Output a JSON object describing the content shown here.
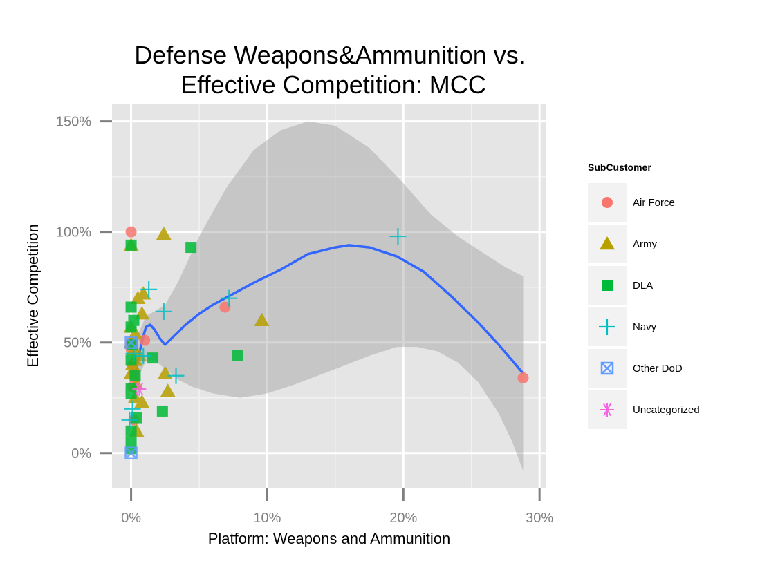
{
  "chart_data": {
    "type": "scatter",
    "title": [
      "Defense Weapons&Ammunition vs.",
      "Effective Competition: MCC"
    ],
    "xlabel": "Platform: Weapons and Ammunition",
    "ylabel": "Effective Competition",
    "xlim": [
      -0.014,
      0.305
    ],
    "ylim": [
      -0.16,
      1.58
    ],
    "x_ticks": [
      0,
      0.1,
      0.2,
      0.3
    ],
    "x_tick_labels": [
      "0%",
      "10%",
      "20%",
      "30%"
    ],
    "y_ticks": [
      0,
      0.5,
      1.0,
      1.5
    ],
    "y_tick_labels": [
      "0%",
      "50%",
      "100%",
      "150%"
    ],
    "grid": true,
    "legend": {
      "title": "SubCustomer",
      "position": "right"
    },
    "series": [
      {
        "name": "Air Force",
        "color": "#F8766D",
        "shape": "circle",
        "points": [
          [
            0.0,
            1.0
          ],
          [
            0.0,
            0.5
          ],
          [
            0.0,
            0.47
          ],
          [
            0.001,
            0.4
          ],
          [
            0.002,
            0.36
          ],
          [
            0.003,
            0.33
          ],
          [
            0.002,
            0.15
          ],
          [
            0.01,
            0.51
          ],
          [
            0.069,
            0.66
          ],
          [
            0.288,
            0.34
          ],
          [
            0.001,
            0.3
          ]
        ]
      },
      {
        "name": "Army",
        "color": "#B79F00",
        "shape": "triangle",
        "points": [
          [
            0.0,
            0.94
          ],
          [
            0.024,
            0.99
          ],
          [
            0.0,
            0.57
          ],
          [
            0.0,
            0.5
          ],
          [
            0.001,
            0.4
          ],
          [
            0.0,
            0.36
          ],
          [
            0.005,
            0.7
          ],
          [
            0.009,
            0.72
          ],
          [
            0.008,
            0.63
          ],
          [
            0.003,
            0.54
          ],
          [
            0.002,
            0.47
          ],
          [
            0.006,
            0.44
          ],
          [
            0.003,
            0.42
          ],
          [
            0.004,
            0.31
          ],
          [
            0.003,
            0.25
          ],
          [
            0.008,
            0.23
          ],
          [
            0.004,
            0.1
          ],
          [
            0.025,
            0.36
          ],
          [
            0.027,
            0.28
          ],
          [
            0.096,
            0.6
          ]
        ]
      },
      {
        "name": "DLA",
        "color": "#00BA38",
        "shape": "square",
        "points": [
          [
            0.0,
            0.94
          ],
          [
            0.044,
            0.93
          ],
          [
            0.0,
            0.66
          ],
          [
            0.002,
            0.6
          ],
          [
            0.0,
            0.57
          ],
          [
            0.001,
            0.49
          ],
          [
            0.0,
            0.42
          ],
          [
            0.016,
            0.43
          ],
          [
            0.003,
            0.35
          ],
          [
            0.0,
            0.29
          ],
          [
            0.0,
            0.27
          ],
          [
            0.004,
            0.16
          ],
          [
            0.0,
            0.1
          ],
          [
            0.0,
            0.05
          ],
          [
            0.0,
            0.02
          ],
          [
            0.023,
            0.19
          ],
          [
            0.078,
            0.44
          ]
        ]
      },
      {
        "name": "Navy",
        "color": "#00BFC4",
        "shape": "plus",
        "points": [
          [
            0.013,
            0.74
          ],
          [
            0.024,
            0.64
          ],
          [
            0.009,
            0.44
          ],
          [
            0.033,
            0.35
          ],
          [
            0.002,
            0.45
          ],
          [
            0.001,
            0.2
          ],
          [
            -0.001,
            0.15
          ],
          [
            0.072,
            0.7
          ],
          [
            0.196,
            0.98
          ]
        ]
      },
      {
        "name": "Other DoD",
        "color": "#619CFF",
        "shape": "square-x",
        "points": [
          [
            0.0,
            0.5
          ],
          [
            0.0,
            0.0
          ]
        ]
      },
      {
        "name": "Uncategorized",
        "color": "#F564E3",
        "shape": "asterisk",
        "points": [
          [
            0.006,
            0.29
          ]
        ]
      }
    ],
    "smooth_line": {
      "color": "#3366FF",
      "points": [
        [
          0.0,
          0.4
        ],
        [
          0.003,
          0.35
        ],
        [
          0.006,
          0.45
        ],
        [
          0.009,
          0.53
        ],
        [
          0.011,
          0.57
        ],
        [
          0.014,
          0.58
        ],
        [
          0.017,
          0.56
        ],
        [
          0.02,
          0.53
        ],
        [
          0.022,
          0.51
        ],
        [
          0.025,
          0.49
        ],
        [
          0.03,
          0.52
        ],
        [
          0.04,
          0.58
        ],
        [
          0.05,
          0.63
        ],
        [
          0.06,
          0.67
        ],
        [
          0.075,
          0.72
        ],
        [
          0.09,
          0.77
        ],
        [
          0.11,
          0.83
        ],
        [
          0.13,
          0.9
        ],
        [
          0.15,
          0.93
        ],
        [
          0.16,
          0.94
        ],
        [
          0.175,
          0.93
        ],
        [
          0.195,
          0.89
        ],
        [
          0.215,
          0.82
        ],
        [
          0.235,
          0.71
        ],
        [
          0.255,
          0.59
        ],
        [
          0.27,
          0.49
        ],
        [
          0.288,
          0.36
        ]
      ]
    },
    "confidence_band": {
      "color": "#999999",
      "upper": [
        [
          0.0,
          0.46
        ],
        [
          0.006,
          0.55
        ],
        [
          0.011,
          0.62
        ],
        [
          0.017,
          0.64
        ],
        [
          0.025,
          0.67
        ],
        [
          0.035,
          0.78
        ],
        [
          0.05,
          0.98
        ],
        [
          0.07,
          1.2
        ],
        [
          0.09,
          1.37
        ],
        [
          0.11,
          1.46
        ],
        [
          0.13,
          1.5
        ],
        [
          0.15,
          1.48
        ],
        [
          0.175,
          1.38
        ],
        [
          0.2,
          1.22
        ],
        [
          0.22,
          1.08
        ],
        [
          0.24,
          0.98
        ],
        [
          0.26,
          0.9
        ],
        [
          0.275,
          0.84
        ],
        [
          0.288,
          0.8
        ]
      ],
      "lower": [
        [
          0.288,
          -0.08
        ],
        [
          0.28,
          0.05
        ],
        [
          0.27,
          0.18
        ],
        [
          0.255,
          0.32
        ],
        [
          0.24,
          0.41
        ],
        [
          0.225,
          0.46
        ],
        [
          0.21,
          0.48
        ],
        [
          0.195,
          0.48
        ],
        [
          0.175,
          0.44
        ],
        [
          0.15,
          0.38
        ],
        [
          0.12,
          0.31
        ],
        [
          0.1,
          0.27
        ],
        [
          0.08,
          0.25
        ],
        [
          0.06,
          0.27
        ],
        [
          0.045,
          0.3
        ],
        [
          0.035,
          0.33
        ],
        [
          0.025,
          0.38
        ],
        [
          0.017,
          0.42
        ],
        [
          0.011,
          0.42
        ],
        [
          0.006,
          0.35
        ],
        [
          0.0,
          0.33
        ]
      ]
    }
  }
}
